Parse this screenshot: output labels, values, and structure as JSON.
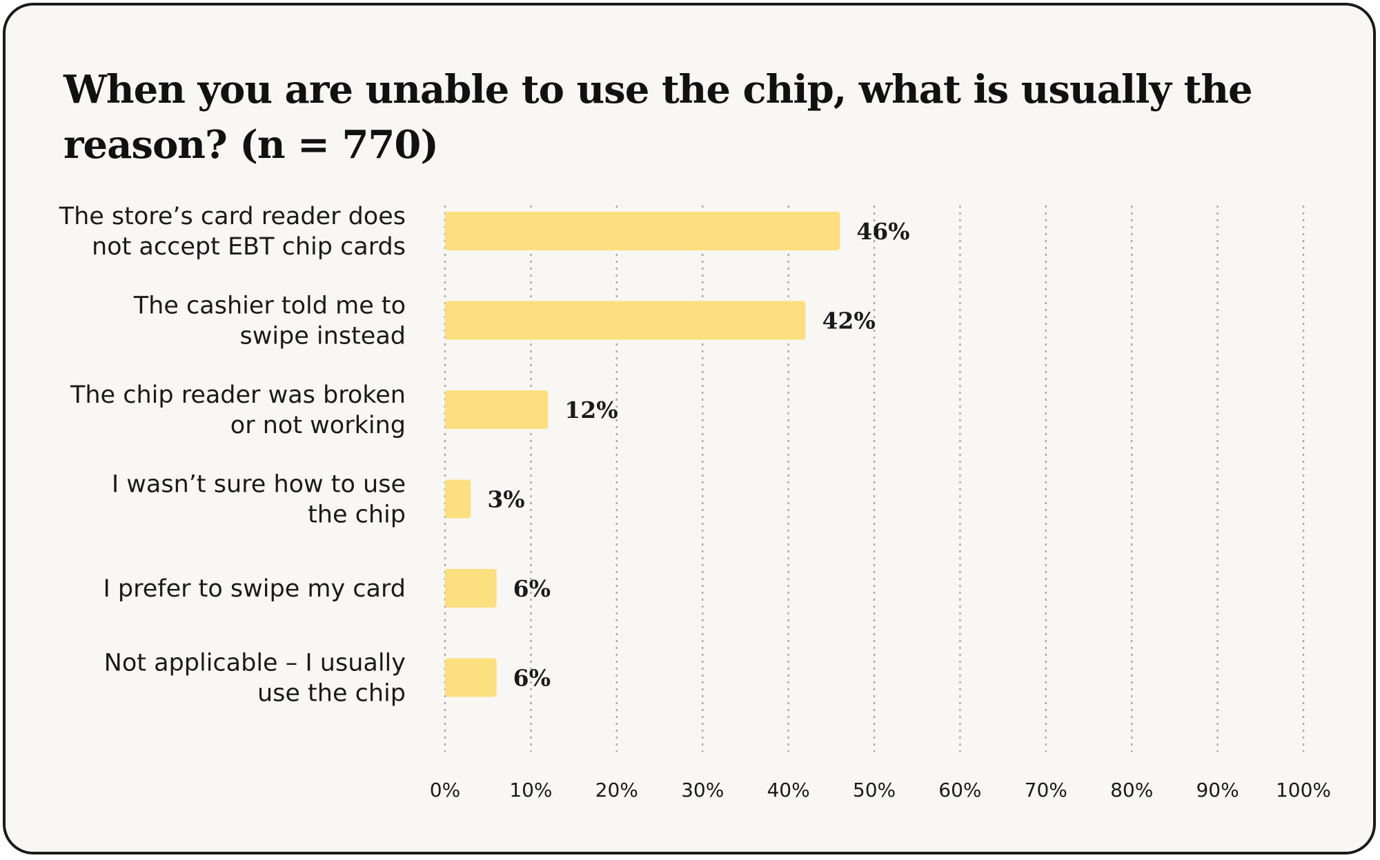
{
  "chart_data": {
    "type": "bar",
    "orientation": "horizontal",
    "title": "When you are unable to use the chip, what is usually the reason? (n = 770)",
    "categories": [
      [
        "The store’s card reader does",
        "not accept EBT chip cards"
      ],
      [
        "The cashier told me to",
        "swipe instead"
      ],
      [
        "The chip reader was broken",
        "or not working"
      ],
      [
        "I wasn’t sure how to use",
        "the chip"
      ],
      [
        "I prefer to swipe my card"
      ],
      [
        "Not applicable – I usually",
        "use the chip"
      ]
    ],
    "values": [
      46,
      42,
      12,
      3,
      6,
      6
    ],
    "value_labels": [
      "46%",
      "42%",
      "12%",
      "3%",
      "6%",
      "6%"
    ],
    "xlim": [
      0,
      100
    ],
    "ticks": [
      0,
      10,
      20,
      30,
      40,
      50,
      60,
      70,
      80,
      90,
      100
    ],
    "tick_labels": [
      "0%",
      "10%",
      "20%",
      "30%",
      "40%",
      "50%",
      "60%",
      "70%",
      "80%",
      "90%",
      "100%"
    ],
    "grid": "vertical dotted",
    "colors": {
      "bar": "#fcdf7e",
      "grid": "#a8a8a8",
      "text": "#1a1a1a"
    }
  }
}
